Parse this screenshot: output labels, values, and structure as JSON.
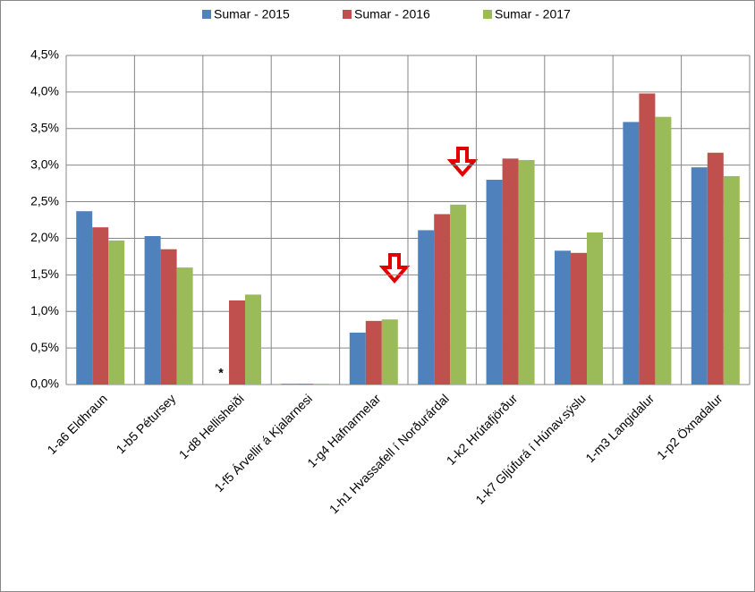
{
  "chart_data": {
    "type": "bar",
    "categories": [
      "1-a6 Eldhraun",
      "1-b5 Pétursey",
      "1-d8 Hellisheiði",
      "1-f5 Árvellir á Kjalarnesi",
      "1-g4 Hafnarmelar",
      "1-h1 Hvassafell í Norðurárdal",
      "1-k2 Hrútafjörður",
      "1-k7 Gljúfurá í Húnav.sýslu",
      "1-m3 Langidalur",
      "1-p2 Öxnadalur"
    ],
    "series": [
      {
        "name": "Sumar - 2015",
        "color": "#4f81bd",
        "values": [
          2.37,
          2.03,
          null,
          0.01,
          0.71,
          2.11,
          2.8,
          1.83,
          3.59,
          2.97
        ]
      },
      {
        "name": "Sumar - 2016",
        "color": "#c0504d",
        "values": [
          2.15,
          1.85,
          1.15,
          0.01,
          0.87,
          2.33,
          3.09,
          1.8,
          3.98,
          3.17
        ]
      },
      {
        "name": "Sumar - 2017",
        "color": "#9bbb59",
        "values": [
          1.97,
          1.6,
          1.23,
          0.01,
          0.89,
          2.46,
          3.07,
          2.08,
          3.66,
          2.85
        ]
      }
    ],
    "annotation": "*",
    "ylim": [
      0,
      4.5
    ],
    "yticks": [
      {
        "value": 0,
        "label": "0,0%"
      },
      {
        "value": 0.5,
        "label": "0,5%"
      },
      {
        "value": 1,
        "label": "1,0%"
      },
      {
        "value": 1.5,
        "label": "1,5%"
      },
      {
        "value": 2,
        "label": "2,0%"
      },
      {
        "value": 2.5,
        "label": "2,5%"
      },
      {
        "value": 3,
        "label": "3,0%"
      },
      {
        "value": 3.5,
        "label": "3,5%"
      },
      {
        "value": 4,
        "label": "4,0%"
      },
      {
        "value": 4.5,
        "label": "4,5%"
      }
    ],
    "grid": true,
    "legend": "top"
  }
}
